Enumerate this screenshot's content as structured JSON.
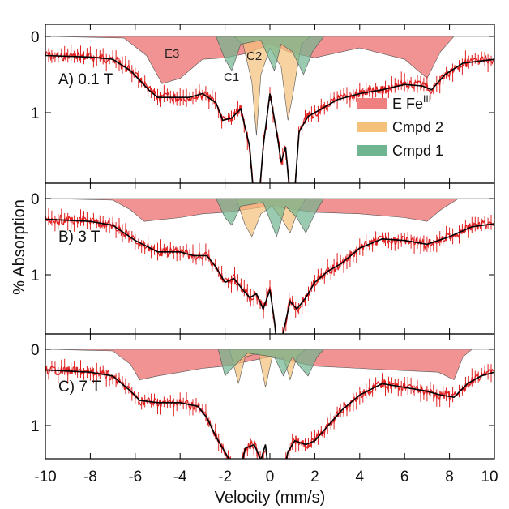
{
  "colors": {
    "data": "#e02020",
    "fit": "#000000",
    "e_fe3": "#f08080",
    "cmpd2": "#f5c07a",
    "cmpd1": "#6fb58f",
    "overlap": "#8f8a3a"
  },
  "chart_data": {
    "type": "line",
    "xlabel": "Velocity (mm/s)",
    "ylabel": "% Absorption",
    "xlim": [
      -10,
      10
    ],
    "x_ticks": [
      "-10",
      "-8",
      "-6",
      "-4",
      "-2",
      "0",
      "2",
      "4",
      "6",
      "8",
      "10"
    ],
    "grid": false,
    "legend": {
      "placement": "right of panel A",
      "entries": [
        {
          "label": "E Fe",
          "sup": "III",
          "color": "#f08080"
        },
        {
          "label": "Cmpd 2",
          "sup": "",
          "color": "#f5c07a"
        },
        {
          "label": "Cmpd 1",
          "sup": "",
          "color": "#6fb58f"
        }
      ]
    },
    "panels": [
      {
        "label": "A) 0.1 T",
        "ylim": [
          -0.45,
          2.35
        ],
        "y_ticks": [
          "0",
          "1"
        ],
        "annotations": [
          "E3",
          "C2",
          "C1"
        ],
        "series": [
          {
            "name": "E Fe",
            "component": "e_fe3",
            "points": [
              [
                -10,
                0
              ],
              [
                -6.5,
                0.02
              ],
              [
                -5.5,
                0.25
              ],
              [
                -4.8,
                0.62
              ],
              [
                -4.0,
                0.55
              ],
              [
                -3.0,
                0.3
              ],
              [
                -2.0,
                0.28
              ],
              [
                -1.0,
                0.22
              ],
              [
                0.0,
                0.1
              ],
              [
                1.0,
                0.22
              ],
              [
                2.0,
                0.28
              ],
              [
                4.0,
                0.15
              ],
              [
                6.0,
                0.3
              ],
              [
                7.0,
                0.55
              ],
              [
                7.6,
                0.2
              ],
              [
                8.2,
                0.0
              ],
              [
                10,
                0
              ]
            ]
          },
          {
            "name": "Cmpd 2",
            "component": "cmpd2",
            "points": [
              [
                -1.6,
                0
              ],
              [
                -1.2,
                0.1
              ],
              [
                -0.8,
                0.6
              ],
              [
                -0.6,
                1.3
              ],
              [
                -0.4,
                0.5
              ],
              [
                0.0,
                0.15
              ],
              [
                0.5,
                0.4
              ],
              [
                0.8,
                1.1
              ],
              [
                1.0,
                0.8
              ],
              [
                1.4,
                0.1
              ],
              [
                1.8,
                0
              ]
            ]
          },
          {
            "name": "Cmpd 1",
            "component": "cmpd1",
            "points": [
              [
                -2.4,
                0
              ],
              [
                -2.0,
                0.3
              ],
              [
                -1.7,
                0.45
              ],
              [
                -1.3,
                0.1
              ],
              [
                -0.4,
                0.05
              ],
              [
                0.2,
                0.45
              ],
              [
                0.5,
                0.1
              ],
              [
                1.0,
                0.2
              ],
              [
                1.5,
                0.5
              ],
              [
                1.9,
                0.2
              ],
              [
                2.4,
                0
              ]
            ]
          },
          {
            "name": "Fit",
            "component": "fit",
            "points": [
              [
                -10,
                0
              ],
              [
                -8,
                0.02
              ],
              [
                -7,
                0.05
              ],
              [
                -6.2,
                0.2
              ],
              [
                -5.4,
                0.45
              ],
              [
                -5,
                0.55
              ],
              [
                -4.5,
                0.55
              ],
              [
                -3.6,
                0.55
              ],
              [
                -3.0,
                0.5
              ],
              [
                -2.4,
                0.62
              ],
              [
                -2.1,
                0.85
              ],
              [
                -1.7,
                0.82
              ],
              [
                -1.3,
                0.7
              ],
              [
                -0.9,
                1.2
              ],
              [
                -0.6,
                2.3
              ],
              [
                -0.3,
                1.2
              ],
              [
                0,
                0.5
              ],
              [
                0.3,
                1.0
              ],
              [
                0.5,
                1.4
              ],
              [
                0.7,
                1.2
              ],
              [
                1.0,
                2.2
              ],
              [
                1.3,
                1.0
              ],
              [
                1.7,
                0.8
              ],
              [
                2.3,
                0.7
              ],
              [
                3.0,
                0.58
              ],
              [
                4.0,
                0.5
              ],
              [
                5.0,
                0.45
              ],
              [
                6.0,
                0.38
              ],
              [
                6.8,
                0.4
              ],
              [
                7.2,
                0.45
              ],
              [
                7.8,
                0.25
              ],
              [
                8.6,
                0.1
              ],
              [
                10,
                0.05
              ]
            ]
          }
        ]
      },
      {
        "label": "B) 3 T",
        "ylim": [
          -0.25,
          2.35
        ],
        "y_ticks": [
          "0",
          "1"
        ],
        "annotations": [],
        "series": [
          {
            "name": "E Fe",
            "component": "e_fe3",
            "points": [
              [
                -10,
                0
              ],
              [
                -7,
                0.02
              ],
              [
                -6.2,
                0.15
              ],
              [
                -5.6,
                0.3
              ],
              [
                -5.0,
                0.28
              ],
              [
                -4.0,
                0.25
              ],
              [
                -3.0,
                0.2
              ],
              [
                -2.0,
                0.18
              ],
              [
                0,
                0.1
              ],
              [
                2.0,
                0.18
              ],
              [
                4.0,
                0.2
              ],
              [
                6.0,
                0.25
              ],
              [
                7.0,
                0.3
              ],
              [
                7.6,
                0.15
              ],
              [
                8.4,
                0.0
              ],
              [
                10,
                0
              ]
            ]
          },
          {
            "name": "Cmpd 2",
            "component": "cmpd2",
            "points": [
              [
                -1.5,
                0
              ],
              [
                -1.1,
                0.35
              ],
              [
                -0.8,
                0.5
              ],
              [
                -0.4,
                0.2
              ],
              [
                0.1,
                0.1
              ],
              [
                0.6,
                0.3
              ],
              [
                0.9,
                0.45
              ],
              [
                1.2,
                0.2
              ],
              [
                1.6,
                0
              ]
            ]
          },
          {
            "name": "Cmpd 1",
            "component": "cmpd1",
            "points": [
              [
                -2.4,
                0
              ],
              [
                -2.0,
                0.25
              ],
              [
                -1.7,
                0.35
              ],
              [
                -1.3,
                0.1
              ],
              [
                -0.3,
                0.05
              ],
              [
                0.3,
                0.5
              ],
              [
                0.7,
                0.1
              ],
              [
                1.2,
                0.25
              ],
              [
                1.6,
                0.45
              ],
              [
                2.0,
                0.2
              ],
              [
                2.4,
                0
              ]
            ]
          },
          {
            "name": "Fit",
            "component": "fit",
            "points": [
              [
                -10,
                0.02
              ],
              [
                -8,
                0.05
              ],
              [
                -7,
                0.1
              ],
              [
                -6,
                0.3
              ],
              [
                -5,
                0.45
              ],
              [
                -4,
                0.45
              ],
              [
                -3.4,
                0.5
              ],
              [
                -2.8,
                0.5
              ],
              [
                -2.4,
                0.65
              ],
              [
                -2.0,
                0.85
              ],
              [
                -1.6,
                0.8
              ],
              [
                -1.2,
                0.95
              ],
              [
                -0.9,
                1.05
              ],
              [
                -0.6,
                1.0
              ],
              [
                -0.3,
                1.2
              ],
              [
                0,
                0.95
              ],
              [
                0.2,
                1.35
              ],
              [
                0.4,
                1.95
              ],
              [
                0.6,
                1.5
              ],
              [
                0.9,
                1.1
              ],
              [
                1.2,
                1.2
              ],
              [
                1.6,
                1.05
              ],
              [
                2.0,
                0.85
              ],
              [
                2.6,
                0.7
              ],
              [
                3.2,
                0.6
              ],
              [
                4.0,
                0.4
              ],
              [
                5.0,
                0.28
              ],
              [
                6.0,
                0.3
              ],
              [
                7.0,
                0.35
              ],
              [
                8.0,
                0.25
              ],
              [
                9.0,
                0.12
              ],
              [
                10,
                0.08
              ]
            ]
          }
        ]
      },
      {
        "label": "C) 7 T",
        "ylim": [
          -0.25,
          2.35
        ],
        "y_ticks": [
          "0",
          "1"
        ],
        "annotations": [],
        "series": [
          {
            "name": "E Fe",
            "component": "e_fe3",
            "points": [
              [
                -10,
                0
              ],
              [
                -7,
                0.02
              ],
              [
                -6.2,
                0.2
              ],
              [
                -5.8,
                0.4
              ],
              [
                -5.0,
                0.35
              ],
              [
                -4.0,
                0.3
              ],
              [
                -3.0,
                0.25
              ],
              [
                -2.0,
                0.22
              ],
              [
                0,
                0.1
              ],
              [
                2.0,
                0.22
              ],
              [
                4.0,
                0.25
              ],
              [
                6.0,
                0.28
              ],
              [
                7.5,
                0.3
              ],
              [
                8.2,
                0.4
              ],
              [
                8.6,
                0.1
              ],
              [
                9.0,
                0.0
              ],
              [
                10,
                0
              ]
            ]
          },
          {
            "name": "Cmpd 2",
            "component": "cmpd2",
            "points": [
              [
                -1.8,
                0
              ],
              [
                -1.4,
                0.45
              ],
              [
                -1.1,
                0.1
              ],
              [
                -0.5,
                0.05
              ],
              [
                -0.2,
                0.5
              ],
              [
                0.1,
                0.1
              ],
              [
                0.6,
                0.1
              ],
              [
                0.9,
                0.4
              ],
              [
                1.2,
                0.1
              ],
              [
                1.6,
                0
              ]
            ]
          },
          {
            "name": "Cmpd 1",
            "component": "cmpd1",
            "points": [
              [
                -2.3,
                0
              ],
              [
                -2.0,
                0.35
              ],
              [
                -1.7,
                0.25
              ],
              [
                -1.0,
                0.05
              ],
              [
                0.2,
                0.1
              ],
              [
                0.6,
                0.35
              ],
              [
                1.0,
                0.1
              ],
              [
                1.4,
                0.25
              ],
              [
                1.7,
                0.35
              ],
              [
                2.1,
                0.1
              ],
              [
                2.4,
                0
              ]
            ]
          },
          {
            "name": "Fit",
            "component": "fit",
            "points": [
              [
                -10,
                0.02
              ],
              [
                -8,
                0.05
              ],
              [
                -7,
                0.1
              ],
              [
                -6.2,
                0.3
              ],
              [
                -5.8,
                0.42
              ],
              [
                -5,
                0.45
              ],
              [
                -4,
                0.45
              ],
              [
                -3.2,
                0.5
              ],
              [
                -2.8,
                0.65
              ],
              [
                -2.4,
                0.9
              ],
              [
                -2.0,
                1.1
              ],
              [
                -1.8,
                1.2
              ],
              [
                -1.4,
                1.45
              ],
              [
                -1.1,
                1.05
              ],
              [
                -0.7,
                1.0
              ],
              [
                -0.4,
                1.2
              ],
              [
                -0.2,
                1.0
              ],
              [
                0.0,
                1.5
              ],
              [
                0.2,
                1.85
              ],
              [
                0.5,
                1.5
              ],
              [
                0.8,
                1.1
              ],
              [
                1.1,
                0.95
              ],
              [
                1.6,
                1.0
              ],
              [
                2.0,
                0.95
              ],
              [
                2.6,
                0.75
              ],
              [
                3.2,
                0.55
              ],
              [
                4.0,
                0.35
              ],
              [
                5.0,
                0.2
              ],
              [
                6.0,
                0.25
              ],
              [
                7.0,
                0.3
              ],
              [
                7.6,
                0.35
              ],
              [
                8.2,
                0.38
              ],
              [
                8.8,
                0.2
              ],
              [
                9.4,
                0.1
              ],
              [
                10,
                0.05
              ]
            ]
          }
        ]
      }
    ]
  }
}
